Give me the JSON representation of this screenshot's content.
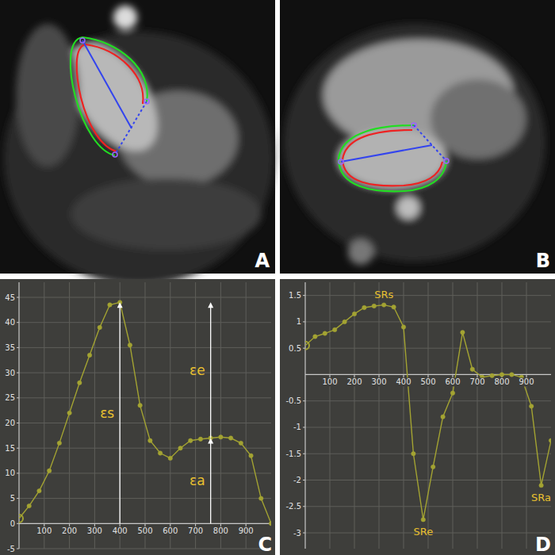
{
  "panel_labels": [
    "A",
    "B",
    "C",
    "D"
  ],
  "chart_data": [
    {
      "type": "line",
      "x": [
        0,
        40,
        80,
        120,
        160,
        200,
        240,
        280,
        320,
        360,
        400,
        440,
        480,
        520,
        560,
        600,
        640,
        680,
        720,
        760,
        800,
        840,
        880,
        920,
        960,
        1000
      ],
      "series": [
        {
          "color": "#a3a332",
          "marker": "circle",
          "values": [
            1,
            3.5,
            6.5,
            10.5,
            16,
            22,
            28,
            33.5,
            39,
            43.5,
            44,
            35.5,
            23.5,
            16.5,
            14,
            13,
            15,
            16.5,
            16.8,
            17,
            17.2,
            17,
            16,
            13.5,
            5,
            0
          ]
        }
      ],
      "xlim": [
        0,
        1000
      ],
      "xticks": [
        100,
        200,
        300,
        400,
        500,
        600,
        700,
        800,
        900
      ],
      "ylim": [
        -5,
        48
      ],
      "yticks": [
        -5,
        0,
        5,
        10,
        15,
        20,
        25,
        30,
        35,
        40,
        45
      ],
      "grid": true,
      "annotations": [
        {
          "text": "εs",
          "x": 400
        },
        {
          "text": "εe",
          "x": 760
        },
        {
          "text": "εa",
          "x": 760
        }
      ]
    },
    {
      "type": "line",
      "x": [
        0,
        40,
        80,
        120,
        160,
        200,
        240,
        280,
        320,
        360,
        400,
        440,
        480,
        520,
        560,
        600,
        640,
        680,
        720,
        760,
        800,
        840,
        880,
        920,
        960,
        1000
      ],
      "series": [
        {
          "color": "#a3a332",
          "marker": "circle",
          "values": [
            0.55,
            0.72,
            0.78,
            0.85,
            1.0,
            1.15,
            1.27,
            1.3,
            1.32,
            1.28,
            0.9,
            -1.5,
            -2.75,
            -1.75,
            -0.8,
            -0.35,
            0.8,
            0.1,
            -0.05,
            -0.02,
            0,
            0,
            -0.05,
            -0.6,
            -2.1,
            -1.25
          ]
        }
      ],
      "xlim": [
        0,
        1000
      ],
      "xticks": [
        100,
        200,
        300,
        400,
        500,
        600,
        700,
        800,
        900
      ],
      "ylim": [
        -3.3,
        1.75
      ],
      "yticks": [
        -3,
        -2.5,
        -2,
        -1.5,
        -1,
        -0.5,
        0.5,
        1,
        1.5
      ],
      "grid": true,
      "annotations": [
        {
          "text": "SRs",
          "x": 320
        },
        {
          "text": "SRe",
          "x": 480
        },
        {
          "text": "SRa",
          "x": 960
        }
      ]
    }
  ]
}
